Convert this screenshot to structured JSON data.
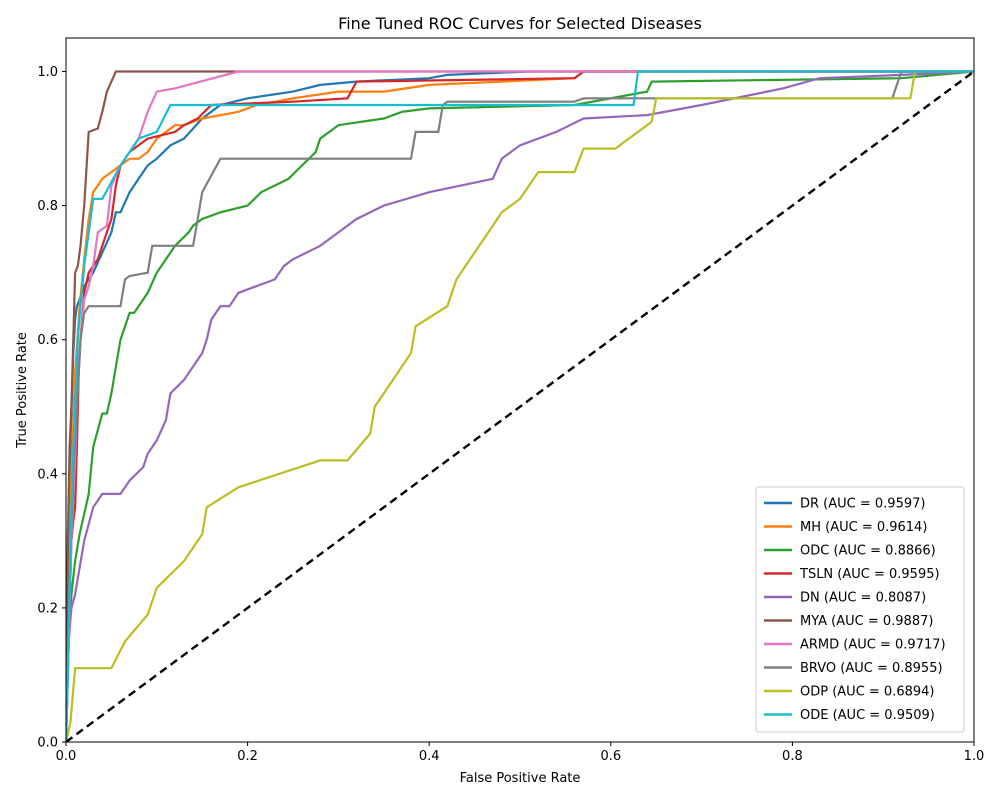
{
  "chart_data": {
    "type": "line",
    "title": "Fine Tuned ROC Curves for Selected Diseases",
    "xlabel": "False Positive Rate",
    "ylabel": "True Positive Rate",
    "xlim": [
      0,
      1
    ],
    "ylim": [
      0,
      1.05
    ],
    "xticks": [
      "0.0",
      "0.2",
      "0.4",
      "0.6",
      "0.8",
      "1.0"
    ],
    "yticks": [
      "0.0",
      "0.2",
      "0.4",
      "0.6",
      "0.8",
      "1.0"
    ],
    "grid": false,
    "legend_position": "lower-right",
    "diagonal": {
      "x": [
        0,
        1
      ],
      "y": [
        0,
        1
      ],
      "color": "#000000",
      "style": "dashed"
    },
    "series": [
      {
        "name": "DR (AUC = 0.9597)",
        "color": "#1f77b4",
        "x": [
          0,
          0.002,
          0.004,
          0.005,
          0.008,
          0.01,
          0.012,
          0.015,
          0.02,
          0.03,
          0.04,
          0.05,
          0.055,
          0.06,
          0.07,
          0.08,
          0.09,
          0.1,
          0.115,
          0.13,
          0.15,
          0.17,
          0.2,
          0.25,
          0.28,
          0.32,
          0.4,
          0.42,
          0.51,
          0.625,
          1.0
        ],
        "y": [
          0,
          0.15,
          0.3,
          0.45,
          0.58,
          0.63,
          0.65,
          0.66,
          0.68,
          0.7,
          0.73,
          0.76,
          0.79,
          0.79,
          0.82,
          0.84,
          0.86,
          0.87,
          0.89,
          0.9,
          0.93,
          0.95,
          0.96,
          0.97,
          0.98,
          0.985,
          0.99,
          0.995,
          1.0,
          1.0,
          1.0
        ]
      },
      {
        "name": "MH (AUC = 0.9614)",
        "color": "#ff7f0e",
        "x": [
          0,
          0.003,
          0.006,
          0.01,
          0.015,
          0.02,
          0.025,
          0.03,
          0.035,
          0.04,
          0.05,
          0.06,
          0.07,
          0.08,
          0.09,
          0.1,
          0.12,
          0.13,
          0.15,
          0.19,
          0.21,
          0.25,
          0.3,
          0.35,
          0.4,
          0.56,
          0.57,
          1.0
        ],
        "y": [
          0,
          0.2,
          0.4,
          0.55,
          0.65,
          0.72,
          0.78,
          0.82,
          0.83,
          0.84,
          0.85,
          0.86,
          0.87,
          0.87,
          0.88,
          0.9,
          0.92,
          0.92,
          0.93,
          0.94,
          0.95,
          0.96,
          0.97,
          0.97,
          0.98,
          0.99,
          1.0,
          1.0
        ]
      },
      {
        "name": "ODC (AUC = 0.8866)",
        "color": "#2ca02c",
        "x": [
          0,
          0.003,
          0.006,
          0.01,
          0.015,
          0.02,
          0.025,
          0.03,
          0.04,
          0.045,
          0.05,
          0.055,
          0.06,
          0.07,
          0.075,
          0.09,
          0.1,
          0.11,
          0.12,
          0.135,
          0.14,
          0.15,
          0.17,
          0.2,
          0.215,
          0.245,
          0.26,
          0.275,
          0.28,
          0.3,
          0.35,
          0.37,
          0.4,
          0.56,
          0.64,
          0.645,
          0.92,
          1.0
        ],
        "y": [
          0,
          0.15,
          0.22,
          0.27,
          0.31,
          0.34,
          0.37,
          0.44,
          0.49,
          0.49,
          0.52,
          0.56,
          0.6,
          0.64,
          0.64,
          0.67,
          0.7,
          0.72,
          0.74,
          0.76,
          0.77,
          0.78,
          0.79,
          0.8,
          0.82,
          0.84,
          0.86,
          0.88,
          0.9,
          0.92,
          0.93,
          0.94,
          0.945,
          0.95,
          0.97,
          0.985,
          0.99,
          1.0
        ]
      },
      {
        "name": "TSLN (AUC = 0.9595)",
        "color": "#d62728",
        "x": [
          0,
          0.002,
          0.004,
          0.006,
          0.008,
          0.01,
          0.012,
          0.014,
          0.016,
          0.02,
          0.025,
          0.03,
          0.035,
          0.04,
          0.05,
          0.055,
          0.06,
          0.07,
          0.08,
          0.09,
          0.12,
          0.13,
          0.145,
          0.16,
          0.25,
          0.31,
          0.32,
          0.56,
          0.57,
          1.0
        ],
        "y": [
          0,
          0.1,
          0.2,
          0.3,
          0.33,
          0.35,
          0.44,
          0.55,
          0.6,
          0.67,
          0.7,
          0.71,
          0.72,
          0.74,
          0.78,
          0.83,
          0.86,
          0.88,
          0.89,
          0.9,
          0.91,
          0.92,
          0.93,
          0.95,
          0.955,
          0.96,
          0.985,
          0.99,
          1.0,
          1.0
        ]
      },
      {
        "name": "DN (AUC = 0.8087)",
        "color": "#9467bd",
        "x": [
          0,
          0.003,
          0.006,
          0.01,
          0.015,
          0.02,
          0.03,
          0.04,
          0.06,
          0.07,
          0.085,
          0.09,
          0.1,
          0.11,
          0.115,
          0.13,
          0.14,
          0.15,
          0.155,
          0.16,
          0.17,
          0.18,
          0.19,
          0.23,
          0.24,
          0.25,
          0.28,
          0.3,
          0.32,
          0.35,
          0.4,
          0.47,
          0.48,
          0.5,
          0.54,
          0.57,
          0.64,
          0.7,
          0.79,
          0.83,
          0.92,
          1.0
        ],
        "y": [
          0,
          0.15,
          0.2,
          0.22,
          0.26,
          0.3,
          0.35,
          0.37,
          0.37,
          0.39,
          0.41,
          0.43,
          0.45,
          0.48,
          0.52,
          0.54,
          0.56,
          0.58,
          0.6,
          0.63,
          0.65,
          0.65,
          0.67,
          0.69,
          0.71,
          0.72,
          0.74,
          0.76,
          0.78,
          0.8,
          0.82,
          0.84,
          0.87,
          0.89,
          0.91,
          0.93,
          0.935,
          0.95,
          0.975,
          0.99,
          0.995,
          1.0
        ]
      },
      {
        "name": "MYA (AUC = 0.9887)",
        "color": "#8c564b",
        "x": [
          0,
          0.002,
          0.004,
          0.006,
          0.008,
          0.01,
          0.013,
          0.016,
          0.02,
          0.025,
          0.035,
          0.04,
          0.045,
          0.055,
          0.06,
          0.19,
          1.0
        ],
        "y": [
          0,
          0.3,
          0.44,
          0.5,
          0.6,
          0.7,
          0.71,
          0.74,
          0.8,
          0.91,
          0.915,
          0.94,
          0.97,
          1.0,
          1.0,
          1.0,
          1.0
        ]
      },
      {
        "name": "ARMD (AUC = 0.9717)",
        "color": "#e377c2",
        "x": [
          0,
          0.003,
          0.006,
          0.01,
          0.013,
          0.016,
          0.02,
          0.025,
          0.03,
          0.035,
          0.045,
          0.05,
          0.06,
          0.07,
          0.08,
          0.085,
          0.09,
          0.1,
          0.12,
          0.19,
          1.0
        ],
        "y": [
          0,
          0.15,
          0.3,
          0.42,
          0.55,
          0.6,
          0.66,
          0.68,
          0.71,
          0.76,
          0.77,
          0.83,
          0.86,
          0.88,
          0.9,
          0.92,
          0.94,
          0.97,
          0.975,
          1.0,
          1.0
        ]
      },
      {
        "name": "BRVO (AUC = 0.8955)",
        "color": "#7f7f7f",
        "x": [
          0,
          0.004,
          0.008,
          0.012,
          0.016,
          0.02,
          0.025,
          0.06,
          0.065,
          0.07,
          0.09,
          0.095,
          0.14,
          0.145,
          0.15,
          0.17,
          0.2,
          0.3,
          0.38,
          0.385,
          0.41,
          0.415,
          0.42,
          0.56,
          0.57,
          0.91,
          0.92,
          1.0
        ],
        "y": [
          0,
          0.25,
          0.4,
          0.5,
          0.6,
          0.64,
          0.65,
          0.65,
          0.69,
          0.695,
          0.7,
          0.74,
          0.74,
          0.78,
          0.82,
          0.87,
          0.87,
          0.87,
          0.87,
          0.91,
          0.91,
          0.95,
          0.955,
          0.955,
          0.96,
          0.96,
          1.0,
          1.0
        ]
      },
      {
        "name": "ODP (AUC = 0.6894)",
        "color": "#bcbd22",
        "x": [
          0,
          0.005,
          0.01,
          0.05,
          0.065,
          0.09,
          0.1,
          0.13,
          0.15,
          0.155,
          0.19,
          0.28,
          0.31,
          0.335,
          0.34,
          0.36,
          0.38,
          0.385,
          0.42,
          0.43,
          0.45,
          0.47,
          0.48,
          0.5,
          0.52,
          0.56,
          0.57,
          0.605,
          0.645,
          0.65,
          0.93,
          0.935,
          1.0
        ],
        "y": [
          0,
          0.03,
          0.11,
          0.11,
          0.15,
          0.19,
          0.23,
          0.27,
          0.31,
          0.35,
          0.38,
          0.42,
          0.42,
          0.46,
          0.5,
          0.54,
          0.58,
          0.62,
          0.65,
          0.69,
          0.73,
          0.77,
          0.79,
          0.81,
          0.85,
          0.85,
          0.885,
          0.885,
          0.925,
          0.96,
          0.96,
          1.0,
          1.0
        ]
      },
      {
        "name": "ODE (AUC = 0.9509)",
        "color": "#17becf",
        "x": [
          0,
          0.003,
          0.006,
          0.01,
          0.013,
          0.016,
          0.02,
          0.025,
          0.03,
          0.04,
          0.06,
          0.07,
          0.08,
          0.09,
          0.1,
          0.115,
          0.12,
          0.2,
          0.625,
          0.63,
          1.0
        ],
        "y": [
          0,
          0.15,
          0.35,
          0.5,
          0.6,
          0.65,
          0.71,
          0.76,
          0.81,
          0.81,
          0.86,
          0.88,
          0.9,
          0.905,
          0.91,
          0.95,
          0.95,
          0.95,
          0.95,
          1.0,
          1.0
        ]
      }
    ]
  }
}
